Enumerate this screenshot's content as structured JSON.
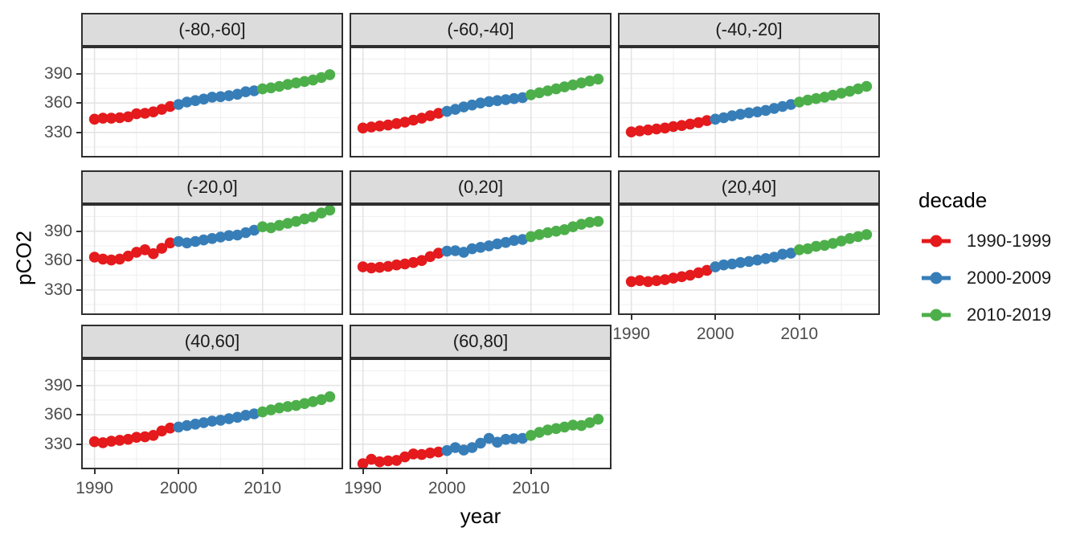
{
  "figure": {
    "x_axis_title": "year",
    "y_axis_title": "pCO2",
    "background": "#ffffff",
    "panel_border_color": "#2f2f2f",
    "strip_fill": "#dcdcdc",
    "grid_major_color": "#e4e4e4",
    "grid_minor_color": "#f0f0f0"
  },
  "legend": {
    "title": "decade",
    "position": "right",
    "entries": [
      {
        "label": "1990-1999",
        "color": "#e41a1c"
      },
      {
        "label": "2000-2009",
        "color": "#377eb8"
      },
      {
        "label": "2010-2019",
        "color": "#4daf4a"
      }
    ]
  },
  "chart_data": {
    "type": "scatter",
    "title": "",
    "xlabel": "year",
    "ylabel": "pCO2",
    "facet_variable": "latitude band",
    "legend_position": "right",
    "grid": "major+minor",
    "x_range": [
      1988.6,
      2019.4
    ],
    "y_range": [
      306,
      416
    ],
    "x_ticks": [
      1990,
      2000,
      2010
    ],
    "x_minor_ticks": [
      1995,
      2005,
      2015
    ],
    "y_ticks": [
      330,
      360,
      390
    ],
    "y_minor_ticks": [
      315,
      345,
      375,
      405
    ],
    "x": [
      1990,
      1991,
      1992,
      1993,
      1994,
      1995,
      1996,
      1997,
      1998,
      1999,
      2000,
      2001,
      2002,
      2003,
      2004,
      2005,
      2006,
      2007,
      2008,
      2009,
      2010,
      2011,
      2012,
      2013,
      2014,
      2015,
      2016,
      2017,
      2018
    ],
    "series": [
      {
        "name": "1990-1999",
        "color": "#e41a1c",
        "year_start": 1990,
        "year_end": 1999
      },
      {
        "name": "2000-2009",
        "color": "#377eb8",
        "year_start": 2000,
        "year_end": 2009
      },
      {
        "name": "2010-2019",
        "color": "#4daf4a",
        "year_start": 2010,
        "year_end": 2018
      }
    ],
    "facets": [
      {
        "label": "(-80,-60]",
        "values": [
          343.5,
          344.5,
          344.5,
          345,
          346,
          349,
          349.5,
          351,
          353.5,
          356.5,
          358.5,
          361,
          362.5,
          364,
          366,
          366.5,
          367.5,
          369,
          371.5,
          372.5,
          374.5,
          375.5,
          377,
          379,
          380.5,
          382,
          383.5,
          386,
          389
        ]
      },
      {
        "label": "(-60,-40]",
        "values": [
          334.5,
          335.5,
          336.5,
          337.5,
          339,
          340.5,
          342.5,
          344.5,
          347,
          349.5,
          351.5,
          353.5,
          356,
          358,
          360,
          361.5,
          362.5,
          363.5,
          364.5,
          365.5,
          368.5,
          370.5,
          372.5,
          374.5,
          376.5,
          378.5,
          380.5,
          382.5,
          384.5
        ]
      },
      {
        "label": "(-40,-20]",
        "values": [
          330.5,
          331.5,
          332.5,
          333.5,
          334.5,
          336,
          337,
          338.5,
          340,
          342,
          343.5,
          345,
          347,
          348.5,
          350,
          351,
          352.5,
          354.5,
          356.5,
          358.5,
          361,
          363,
          364.5,
          366,
          368,
          370,
          372,
          374.5,
          377
        ]
      },
      {
        "label": "(-20,0]",
        "values": [
          363.5,
          361.5,
          360.5,
          361.5,
          364.5,
          368.5,
          371,
          367,
          372.5,
          378,
          379.5,
          378,
          379.5,
          381,
          382.5,
          384,
          385.5,
          386,
          388.5,
          391,
          394.5,
          393.5,
          396,
          398,
          400,
          402.5,
          404.5,
          408.5,
          411.5
        ]
      },
      {
        "label": "(0,20]",
        "values": [
          353.5,
          352.5,
          353,
          354,
          355.5,
          356.5,
          358,
          360,
          364,
          367.5,
          369.5,
          370,
          368.5,
          372,
          373.5,
          375,
          377,
          378.5,
          380.5,
          381.5,
          384.5,
          386.5,
          388.5,
          390,
          391.5,
          394.5,
          397,
          399,
          400
        ]
      },
      {
        "label": "(20,40]",
        "values": [
          338.5,
          339.5,
          338.5,
          339.5,
          340.5,
          342,
          343.5,
          345,
          347.5,
          350,
          353.5,
          355.5,
          356.5,
          358,
          359,
          360.5,
          362,
          363.5,
          366.5,
          367.5,
          371,
          372,
          374.5,
          375.5,
          377.5,
          380,
          382.5,
          384.5,
          386.5
        ]
      },
      {
        "label": "(40,60]",
        "values": [
          332.5,
          331.5,
          333,
          334,
          335,
          337,
          337.5,
          339,
          343.5,
          346.5,
          347.5,
          349,
          350.5,
          352,
          353.5,
          354.5,
          356,
          357.5,
          359.5,
          361,
          363,
          365,
          367,
          368.5,
          369.5,
          371.5,
          373.5,
          375.5,
          378.5
        ]
      },
      {
        "label": "(60,80]",
        "values": [
          310,
          314.5,
          312,
          313,
          313.5,
          317,
          320,
          319.5,
          321,
          322,
          323.5,
          326.5,
          324,
          326.5,
          331,
          336,
          332,
          335,
          335.5,
          336,
          339,
          342,
          344.5,
          346,
          347.5,
          349.5,
          349,
          352,
          355.5
        ]
      }
    ]
  }
}
